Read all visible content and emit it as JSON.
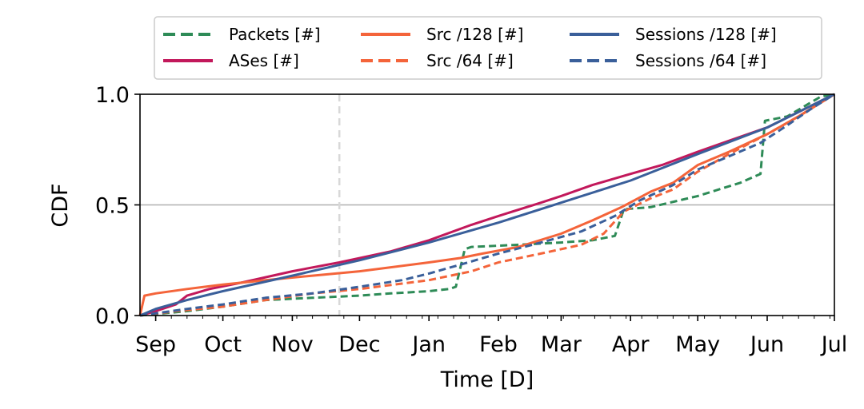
{
  "chart_data": {
    "type": "line",
    "title": "",
    "xlabel": "Time [D]",
    "ylabel": "CDF",
    "ylim": [
      0,
      1
    ],
    "xlim": [
      "2022-08-25",
      "2023-07-01"
    ],
    "yticks": [
      {
        "v": 0.0,
        "label": "0.0"
      },
      {
        "v": 0.5,
        "label": "0.5"
      },
      {
        "v": 1.0,
        "label": "1.0"
      }
    ],
    "xticks": [
      {
        "date": "2022-09-01",
        "label": "Sep"
      },
      {
        "date": "2022-10-01",
        "label": "Oct"
      },
      {
        "date": "2022-11-01",
        "label": "Nov"
      },
      {
        "date": "2022-12-01",
        "label": "Dec"
      },
      {
        "date": "2023-01-01",
        "label": "Jan"
      },
      {
        "date": "2023-02-01",
        "label": "Feb"
      },
      {
        "date": "2023-03-01",
        "label": "Mar"
      },
      {
        "date": "2023-04-01",
        "label": "Apr"
      },
      {
        "date": "2023-05-01",
        "label": "May"
      },
      {
        "date": "2023-06-01",
        "label": "Jun"
      },
      {
        "date": "2023-07-01",
        "label": "Jul"
      }
    ],
    "reference_lines": {
      "horizontal_y": 0.5,
      "vertical_date": "2022-11-22"
    },
    "legend_position": "top-center",
    "series": [
      {
        "name": "Packets [#]",
        "color": "#2e8b57",
        "dash": "dashed",
        "points": [
          [
            "2022-08-25",
            0.0
          ],
          [
            "2022-09-15",
            0.02
          ],
          [
            "2022-10-01",
            0.04
          ],
          [
            "2022-10-20",
            0.07
          ],
          [
            "2022-11-10",
            0.08
          ],
          [
            "2022-12-01",
            0.09
          ],
          [
            "2022-12-15",
            0.1
          ],
          [
            "2023-01-01",
            0.11
          ],
          [
            "2023-01-10",
            0.12
          ],
          [
            "2023-01-13",
            0.13
          ],
          [
            "2023-01-17",
            0.3
          ],
          [
            "2023-01-20",
            0.31
          ],
          [
            "2023-02-10",
            0.32
          ],
          [
            "2023-03-01",
            0.33
          ],
          [
            "2023-03-15",
            0.34
          ],
          [
            "2023-03-25",
            0.36
          ],
          [
            "2023-03-29",
            0.48
          ],
          [
            "2023-04-10",
            0.49
          ],
          [
            "2023-05-01",
            0.54
          ],
          [
            "2023-05-20",
            0.6
          ],
          [
            "2023-05-29",
            0.64
          ],
          [
            "2023-05-31",
            0.88
          ],
          [
            "2023-06-10",
            0.9
          ],
          [
            "2023-06-20",
            0.96
          ],
          [
            "2023-06-25",
            0.99
          ],
          [
            "2023-07-01",
            1.0
          ]
        ]
      },
      {
        "name": "ASes [#]",
        "color": "#c2185b",
        "dash": "solid",
        "points": [
          [
            "2022-08-25",
            0.0
          ],
          [
            "2022-09-01",
            0.02
          ],
          [
            "2022-09-10",
            0.05
          ],
          [
            "2022-09-15",
            0.09
          ],
          [
            "2022-09-25",
            0.12
          ],
          [
            "2022-10-10",
            0.15
          ],
          [
            "2022-11-01",
            0.2
          ],
          [
            "2022-11-22",
            0.24
          ],
          [
            "2022-12-15",
            0.29
          ],
          [
            "2023-01-01",
            0.34
          ],
          [
            "2023-01-20",
            0.41
          ],
          [
            "2023-02-01",
            0.45
          ],
          [
            "2023-02-20",
            0.51
          ],
          [
            "2023-03-01",
            0.54
          ],
          [
            "2023-03-15",
            0.59
          ],
          [
            "2023-04-01",
            0.64
          ],
          [
            "2023-04-15",
            0.68
          ],
          [
            "2023-05-01",
            0.74
          ],
          [
            "2023-05-15",
            0.79
          ],
          [
            "2023-06-01",
            0.85
          ],
          [
            "2023-06-15",
            0.92
          ],
          [
            "2023-07-01",
            1.0
          ]
        ]
      },
      {
        "name": "Src /128 [#]",
        "color": "#f4643a",
        "dash": "solid",
        "points": [
          [
            "2022-08-25",
            0.0
          ],
          [
            "2022-08-27",
            0.09
          ],
          [
            "2022-09-01",
            0.1
          ],
          [
            "2022-09-15",
            0.12
          ],
          [
            "2022-10-01",
            0.14
          ],
          [
            "2022-10-20",
            0.16
          ],
          [
            "2022-11-10",
            0.18
          ],
          [
            "2022-12-01",
            0.2
          ],
          [
            "2023-01-01",
            0.24
          ],
          [
            "2023-01-15",
            0.26
          ],
          [
            "2023-01-25",
            0.28
          ],
          [
            "2023-02-10",
            0.31
          ],
          [
            "2023-03-01",
            0.37
          ],
          [
            "2023-03-15",
            0.43
          ],
          [
            "2023-03-28",
            0.49
          ],
          [
            "2023-04-10",
            0.56
          ],
          [
            "2023-04-20",
            0.6
          ],
          [
            "2023-05-01",
            0.68
          ],
          [
            "2023-05-15",
            0.74
          ],
          [
            "2023-06-01",
            0.82
          ],
          [
            "2023-06-15",
            0.9
          ],
          [
            "2023-07-01",
            1.0
          ]
        ]
      },
      {
        "name": "Src /64 [#]",
        "color": "#f4643a",
        "dash": "dashed",
        "points": [
          [
            "2022-08-25",
            0.0
          ],
          [
            "2022-09-10",
            0.02
          ],
          [
            "2022-10-01",
            0.04
          ],
          [
            "2022-10-20",
            0.07
          ],
          [
            "2022-11-10",
            0.1
          ],
          [
            "2022-12-01",
            0.12
          ],
          [
            "2023-01-01",
            0.16
          ],
          [
            "2023-01-20",
            0.2
          ],
          [
            "2023-02-01",
            0.24
          ],
          [
            "2023-02-20",
            0.28
          ],
          [
            "2023-03-10",
            0.32
          ],
          [
            "2023-03-20",
            0.37
          ],
          [
            "2023-03-29",
            0.47
          ],
          [
            "2023-04-10",
            0.53
          ],
          [
            "2023-04-20",
            0.57
          ],
          [
            "2023-05-01",
            0.65
          ],
          [
            "2023-05-15",
            0.73
          ],
          [
            "2023-06-01",
            0.82
          ],
          [
            "2023-06-15",
            0.9
          ],
          [
            "2023-07-01",
            1.0
          ]
        ]
      },
      {
        "name": "Sessions /128 [#]",
        "color": "#3a5f9a",
        "dash": "solid",
        "points": [
          [
            "2022-08-25",
            0.0
          ],
          [
            "2022-09-01",
            0.03
          ],
          [
            "2022-09-15",
            0.07
          ],
          [
            "2022-10-01",
            0.11
          ],
          [
            "2022-11-01",
            0.18
          ],
          [
            "2022-12-01",
            0.25
          ],
          [
            "2023-01-01",
            0.33
          ],
          [
            "2023-02-01",
            0.42
          ],
          [
            "2023-03-01",
            0.51
          ],
          [
            "2023-04-01",
            0.61
          ],
          [
            "2023-05-01",
            0.73
          ],
          [
            "2023-06-01",
            0.85
          ],
          [
            "2023-07-01",
            1.0
          ]
        ]
      },
      {
        "name": "Sessions /64 [#]",
        "color": "#3a5f9a",
        "dash": "dashed",
        "points": [
          [
            "2022-08-25",
            0.0
          ],
          [
            "2022-09-15",
            0.03
          ],
          [
            "2022-10-01",
            0.05
          ],
          [
            "2022-10-20",
            0.08
          ],
          [
            "2022-11-10",
            0.1
          ],
          [
            "2022-12-01",
            0.13
          ],
          [
            "2022-12-20",
            0.16
          ],
          [
            "2023-01-01",
            0.19
          ],
          [
            "2023-01-15",
            0.23
          ],
          [
            "2023-02-01",
            0.28
          ],
          [
            "2023-02-20",
            0.33
          ],
          [
            "2023-03-10",
            0.38
          ],
          [
            "2023-03-25",
            0.45
          ],
          [
            "2023-04-05",
            0.52
          ],
          [
            "2023-04-20",
            0.59
          ],
          [
            "2023-05-01",
            0.66
          ],
          [
            "2023-05-15",
            0.72
          ],
          [
            "2023-05-29",
            0.78
          ],
          [
            "2023-06-10",
            0.86
          ],
          [
            "2023-06-20",
            0.93
          ],
          [
            "2023-07-01",
            1.0
          ]
        ]
      }
    ]
  }
}
